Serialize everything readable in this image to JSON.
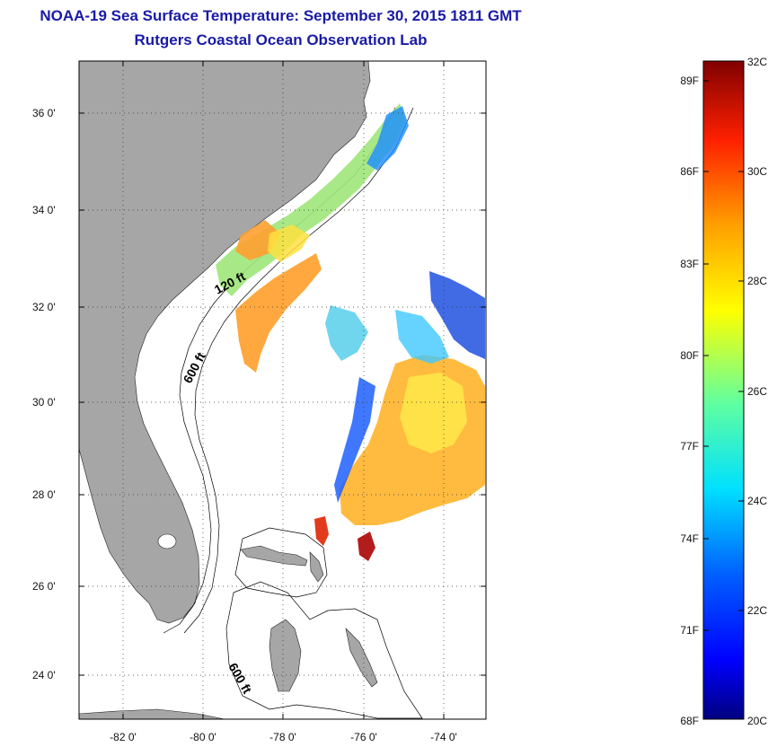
{
  "header": {
    "title": "NOAA-19 Sea Surface Temperature:  September 30, 2015 1811 GMT",
    "subtitle": "Rutgers Coastal Ocean Observation Lab"
  },
  "map": {
    "lat_labels": [
      "36 0'",
      "34 0'",
      "32 0'",
      "30 0'",
      "28 0'",
      "26 0'",
      "24 0'"
    ],
    "lon_labels": [
      "-82 0'",
      "-80 0'",
      "-78 0'",
      "-76 0'",
      "-74 0'"
    ],
    "contours": [
      "120 ft",
      "600 ft",
      "600 ft"
    ],
    "colors": {
      "land": "#a6a6a6",
      "ocean": "#ffffff"
    }
  },
  "colorbar": {
    "f_labels": [
      "89F",
      "86F",
      "83F",
      "80F",
      "77F",
      "74F",
      "71F",
      "68F"
    ],
    "c_labels": [
      "32C",
      "30C",
      "28C",
      "26C",
      "24C",
      "22C",
      "20C"
    ],
    "colors": [
      "#800000",
      "#ff0000",
      "#ffa000",
      "#ffff00",
      "#80ff80",
      "#00ffff",
      "#0080ff",
      "#0000ff",
      "#000080"
    ]
  }
}
